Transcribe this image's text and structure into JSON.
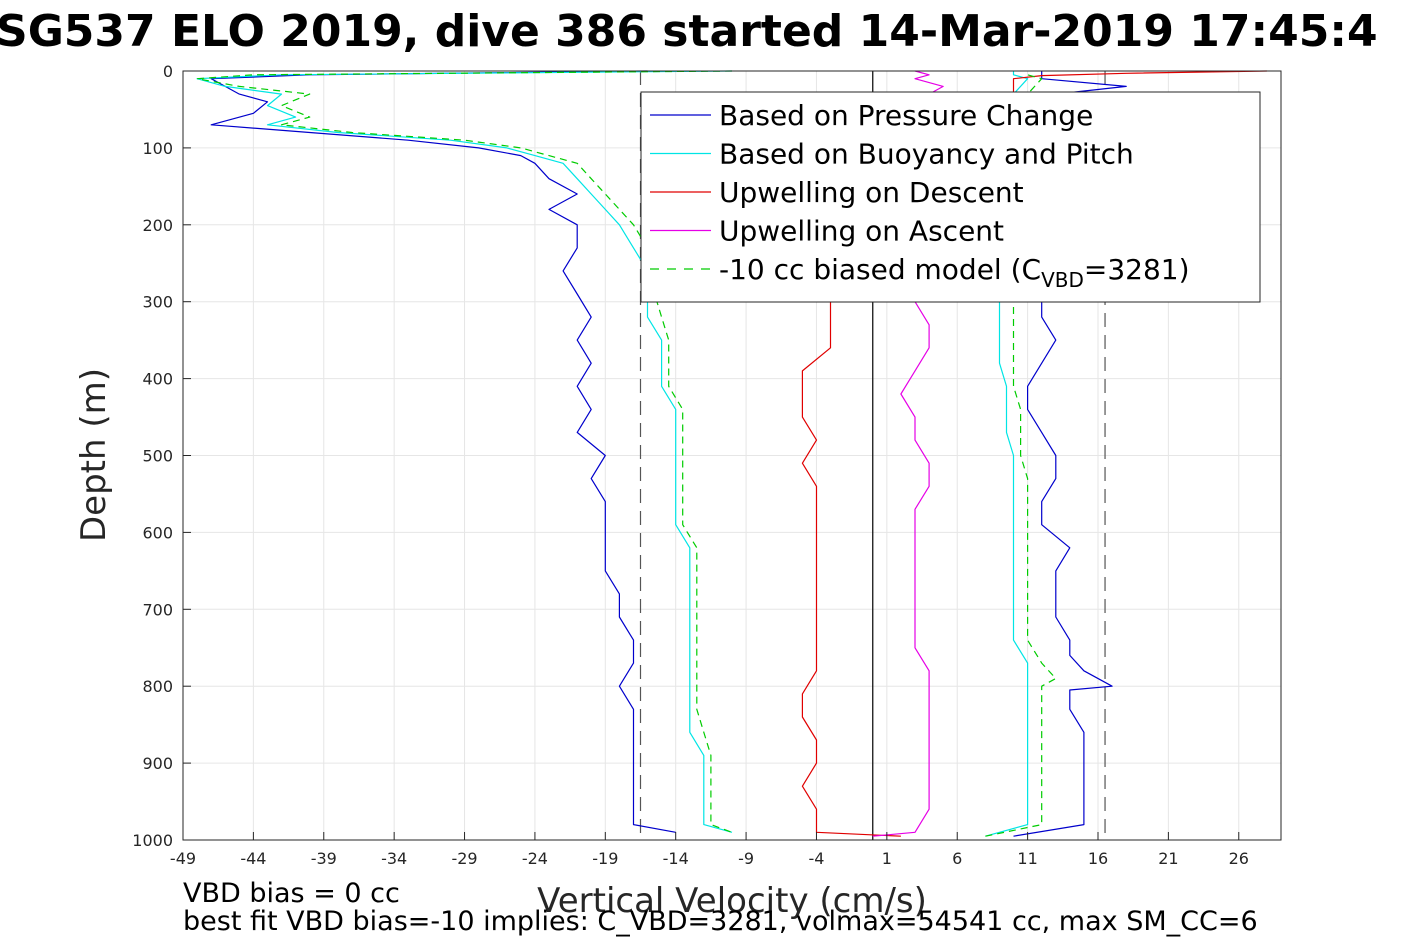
{
  "title": "SG537 ELO 2019, dive 386 started 14-Mar-2019 17:45:4",
  "notes": {
    "bias": "VBD bias = 0 cc",
    "best_fit": "best fit VBD bias=-10 implies: C_VBD=3281, volmax=54541 cc, max SM_CC=6"
  },
  "chart_data": {
    "type": "line",
    "xlabel": "Vertical Velocity (cm/s)",
    "ylabel": "Depth (m)",
    "xlim": [
      -49,
      29
    ],
    "ylim": [
      0,
      1000
    ],
    "y_reversed": true,
    "grid": true,
    "xticks": [
      -49,
      -44,
      -39,
      -34,
      -29,
      -24,
      -19,
      -14,
      -9,
      -4,
      1,
      6,
      11,
      16,
      21,
      26
    ],
    "yticks": [
      0,
      100,
      200,
      300,
      400,
      500,
      600,
      700,
      800,
      900,
      1000
    ],
    "vertical_lines": [
      {
        "x": -16.5,
        "style": "dashed",
        "color": "#555555"
      },
      {
        "x": 0,
        "style": "solid",
        "color": "#000000"
      },
      {
        "x": 16.5,
        "style": "dashed",
        "color": "#555555"
      }
    ],
    "legend": {
      "placement": "top-right",
      "entries": [
        {
          "label": "Based on Pressure Change",
          "color": "#0000cc",
          "style": "solid"
        },
        {
          "label": "Based on Buoyancy and Pitch",
          "color": "#00e5e5",
          "style": "solid"
        },
        {
          "label": "Upwelling on Descent",
          "color": "#e00000",
          "style": "solid"
        },
        {
          "label": "Upwelling on Ascent",
          "color": "#e600e6",
          "style": "solid"
        },
        {
          "label": "-10 cc biased model (C",
          "sub": "VBD",
          "suffix": "=3281)",
          "color": "#00cc00",
          "style": "dashed"
        }
      ]
    },
    "series": [
      {
        "name": "Based on Pressure Change (descent)",
        "color": "#0000cc",
        "depth": [
          0,
          5,
          10,
          20,
          30,
          40,
          55,
          70,
          80,
          90,
          100,
          110,
          120,
          140,
          160,
          180,
          200,
          230,
          260,
          290,
          320,
          350,
          380,
          410,
          440,
          470,
          500,
          530,
          560,
          590,
          620,
          650,
          680,
          710,
          740,
          770,
          800,
          830,
          860,
          890,
          920,
          950,
          980,
          990
        ],
        "x": [
          -16,
          -40,
          -47,
          -46,
          -45,
          -43,
          -44,
          -47,
          -40,
          -33,
          -28,
          -25,
          -24,
          -23,
          -21,
          -23,
          -21,
          -21,
          -22,
          -21,
          -20,
          -21,
          -20,
          -21,
          -20,
          -21,
          -19,
          -20,
          -19,
          -19,
          -19,
          -19,
          -18,
          -18,
          -17,
          -17,
          -18,
          -17,
          -17,
          -17,
          -17,
          -17,
          -17,
          -14
        ]
      },
      {
        "name": "Based on Pressure Change (ascent)",
        "color": "#0000cc",
        "depth": [
          995,
          980,
          950,
          920,
          890,
          860,
          830,
          805,
          800,
          780,
          760,
          740,
          710,
          680,
          650,
          620,
          590,
          560,
          530,
          500,
          470,
          440,
          410,
          380,
          350,
          320,
          300,
          250,
          200,
          150,
          100,
          60,
          30,
          20,
          10,
          5,
          0
        ],
        "x": [
          10,
          15,
          15,
          15,
          15,
          15,
          14,
          14,
          17,
          15,
          14,
          14,
          13,
          13,
          13,
          14,
          12,
          12,
          13,
          13,
          12,
          11,
          11,
          12,
          13,
          12,
          12,
          12,
          12,
          12,
          12,
          12,
          13,
          18,
          12,
          12,
          12
        ]
      },
      {
        "name": "Based on Buoyancy and Pitch (descent)",
        "color": "#00e5e5",
        "depth": [
          0,
          5,
          10,
          20,
          30,
          45,
          60,
          70,
          80,
          90,
          100,
          110,
          120,
          140,
          160,
          180,
          200,
          230,
          260,
          290,
          320,
          350,
          380,
          410,
          440,
          470,
          500,
          530,
          560,
          590,
          620,
          650,
          680,
          710,
          740,
          770,
          800,
          830,
          860,
          890,
          920,
          950,
          980,
          990
        ],
        "x": [
          -10,
          -42,
          -48,
          -46,
          -42,
          -43,
          -41,
          -43,
          -38,
          -30,
          -26,
          -24,
          -22,
          -21,
          -20,
          -19,
          -18,
          -17,
          -16,
          -16,
          -16,
          -15,
          -15,
          -15,
          -14,
          -14,
          -14,
          -14,
          -14,
          -14,
          -13,
          -13,
          -13,
          -13,
          -13,
          -13,
          -13,
          -13,
          -13,
          -12,
          -12,
          -12,
          -12,
          -10
        ]
      },
      {
        "name": "Based on Buoyancy and Pitch (ascent)",
        "color": "#00e5e5",
        "depth": [
          995,
          980,
          950,
          920,
          890,
          860,
          830,
          800,
          770,
          740,
          710,
          680,
          650,
          620,
          590,
          560,
          530,
          500,
          470,
          440,
          410,
          380,
          350,
          320,
          300,
          250,
          200,
          150,
          100,
          60,
          30,
          10,
          5,
          0
        ],
        "x": [
          8,
          11,
          11,
          11,
          11,
          11,
          11,
          11,
          11,
          10,
          10,
          10,
          10,
          10,
          10,
          10,
          10,
          10,
          9.5,
          9.5,
          9.5,
          9,
          9,
          9,
          9,
          9,
          9,
          9,
          9,
          9,
          10,
          11,
          10,
          10
        ]
      },
      {
        "name": "Upwelling on Descent",
        "color": "#e00000",
        "depth": [
          300,
          330,
          360,
          390,
          420,
          450,
          480,
          510,
          540,
          570,
          600,
          630,
          660,
          690,
          720,
          750,
          780,
          810,
          840,
          870,
          900,
          930,
          960,
          990,
          995
        ],
        "x": [
          -3,
          -3,
          -3,
          -5,
          -5,
          -5,
          -4,
          -5,
          -4,
          -4,
          -4,
          -4,
          -4,
          -4,
          -4,
          -4,
          -4,
          -5,
          -5,
          -4,
          -4,
          -5,
          -4,
          -4,
          2
        ]
      },
      {
        "name": "Upwelling on Descent (near surface)",
        "color": "#e00000",
        "depth": [
          0,
          3,
          6,
          10,
          20,
          30
        ],
        "x": [
          28,
          18,
          12,
          10,
          10,
          10
        ]
      },
      {
        "name": "Upwelling on Ascent",
        "color": "#e600e6",
        "depth": [
          300,
          330,
          360,
          390,
          420,
          450,
          480,
          510,
          540,
          570,
          600,
          630,
          660,
          690,
          720,
          750,
          780,
          810,
          840,
          870,
          900,
          930,
          960,
          990,
          995
        ],
        "x": [
          3,
          4,
          4,
          3,
          2,
          3,
          3,
          4,
          4,
          3,
          3,
          3,
          3,
          3,
          3,
          3,
          4,
          4,
          4,
          4,
          4,
          4,
          4,
          3,
          0
        ]
      },
      {
        "name": "Upwelling on Ascent (near surface)",
        "color": "#e600e6",
        "depth": [
          0,
          5,
          10,
          20,
          30
        ],
        "x": [
          3,
          4,
          3,
          5,
          4
        ]
      },
      {
        "name": "-10 cc biased model (descent)",
        "color": "#00cc00",
        "dashed": true,
        "depth": [
          0,
          5,
          10,
          20,
          30,
          45,
          60,
          70,
          80,
          90,
          100,
          110,
          120,
          140,
          160,
          180,
          200,
          230,
          260,
          290,
          320,
          350,
          380,
          410,
          440,
          470,
          500,
          530,
          560,
          590,
          620,
          650,
          680,
          710,
          740,
          770,
          800,
          830,
          860,
          890,
          920,
          950,
          980,
          990
        ],
        "x": [
          -10,
          -44,
          -48,
          -45,
          -40,
          -42,
          -40,
          -42,
          -37,
          -29,
          -25,
          -23,
          -21,
          -20,
          -19,
          -18,
          -17,
          -16,
          -15.5,
          -15.5,
          -15,
          -14.5,
          -14.5,
          -14.5,
          -13.5,
          -13.5,
          -13.5,
          -13.5,
          -13.5,
          -13.5,
          -12.5,
          -12.5,
          -12.5,
          -12.5,
          -12.5,
          -12.5,
          -12.5,
          -12.5,
          -12,
          -11.5,
          -11.5,
          -11.5,
          -11.5,
          -10
        ]
      },
      {
        "name": "-10 cc biased model (ascent)",
        "color": "#00cc00",
        "dashed": true,
        "depth": [
          995,
          980,
          950,
          920,
          890,
          860,
          830,
          800,
          790,
          770,
          740,
          710,
          680,
          650,
          620,
          590,
          560,
          530,
          500,
          470,
          440,
          410,
          380,
          350,
          320,
          300,
          250,
          200,
          150,
          100,
          60,
          30,
          10,
          5,
          0
        ],
        "x": [
          8,
          12,
          12,
          12,
          12,
          12,
          12,
          12,
          13,
          12,
          11,
          11,
          11,
          11,
          11,
          11,
          11,
          11,
          10.5,
          10.5,
          10.5,
          10,
          10,
          10,
          10,
          10,
          10,
          10,
          10,
          10,
          10,
          11,
          12,
          11,
          11
        ]
      }
    ]
  }
}
